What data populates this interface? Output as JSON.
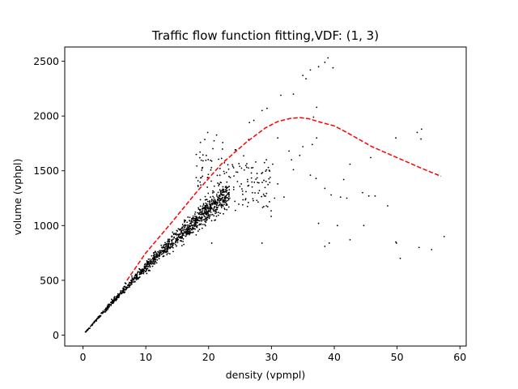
{
  "chart_data": {
    "type": "scatter",
    "title": "Traffic flow function fitting,VDF: (1, 3)",
    "xlabel": "density (vpmpl)",
    "ylabel": "volume (vphpl)",
    "xlim": [
      -2.9,
      61
    ],
    "ylim": [
      -100,
      2630
    ],
    "xticks": [
      0,
      10,
      20,
      30,
      40,
      50,
      60
    ],
    "yticks": [
      0,
      500,
      1000,
      1500,
      2000,
      2500
    ],
    "grid": false,
    "legend": "none",
    "colors": {
      "points": "#000000",
      "fit": "#ff0000"
    },
    "series": [
      {
        "kind": "scatter",
        "outliers": [
          [
            36.7,
            1990
          ],
          [
            37.5,
            2450
          ],
          [
            37.2,
            2080
          ],
          [
            39.0,
            2530
          ],
          [
            38.5,
            2490
          ],
          [
            39.8,
            2440
          ],
          [
            35.5,
            2340
          ],
          [
            35.0,
            2370
          ],
          [
            36.2,
            2420
          ],
          [
            33.5,
            2200
          ],
          [
            31.5,
            2190
          ],
          [
            29.3,
            2070
          ],
          [
            28.5,
            2050
          ],
          [
            27.2,
            1960
          ],
          [
            26.5,
            1940
          ],
          [
            29.5,
            1530
          ],
          [
            31.0,
            1380
          ],
          [
            28.0,
            1390
          ],
          [
            30.5,
            1250
          ],
          [
            32.0,
            1260
          ],
          [
            33.5,
            1510
          ],
          [
            36.2,
            1460
          ],
          [
            37.1,
            1430
          ],
          [
            38.5,
            1340
          ],
          [
            39.5,
            1280
          ],
          [
            41.0,
            1260
          ],
          [
            42.0,
            1250
          ],
          [
            42.5,
            1560
          ],
          [
            41.5,
            1420
          ],
          [
            44.5,
            1300
          ],
          [
            45.5,
            1270
          ],
          [
            46.5,
            1270
          ],
          [
            45.8,
            1620
          ],
          [
            49.8,
            1800
          ],
          [
            53.2,
            1850
          ],
          [
            53.9,
            1880
          ],
          [
            53.8,
            1790
          ],
          [
            37.5,
            1020
          ],
          [
            40.5,
            1000
          ],
          [
            38.5,
            810
          ],
          [
            39.2,
            840
          ],
          [
            42.5,
            870
          ],
          [
            44.7,
            1000
          ],
          [
            48.5,
            1180
          ],
          [
            49.8,
            850
          ],
          [
            49.9,
            840
          ],
          [
            50.5,
            700
          ],
          [
            53.5,
            800
          ],
          [
            55.5,
            780
          ],
          [
            57.5,
            900
          ],
          [
            28.5,
            840
          ],
          [
            20.5,
            840
          ],
          [
            34.5,
            1640
          ],
          [
            36.5,
            1740
          ],
          [
            37.2,
            1800
          ],
          [
            33.2,
            1600
          ],
          [
            35.0,
            1720
          ],
          [
            31.0,
            1800
          ],
          [
            32.8,
            1680
          ],
          [
            27.5,
            1580
          ],
          [
            26.8,
            1480
          ],
          [
            25.2,
            1380
          ],
          [
            24.0,
            1350
          ],
          [
            23.2,
            1290
          ],
          [
            22.6,
            1230
          ],
          [
            30.2,
            1560
          ],
          [
            29.8,
            1440
          ],
          [
            26.2,
            1420
          ]
        ]
      },
      {
        "kind": "line",
        "style": "dashed",
        "x": [
          7,
          10,
          14,
          18,
          22,
          26,
          29,
          31,
          33,
          34.5,
          36,
          38,
          40,
          42,
          46,
          50,
          54,
          57
        ],
        "y": [
          500,
          750,
          1020,
          1300,
          1560,
          1760,
          1890,
          1950,
          1978,
          1985,
          1975,
          1940,
          1910,
          1850,
          1720,
          1620,
          1520,
          1450
        ]
      }
    ]
  }
}
